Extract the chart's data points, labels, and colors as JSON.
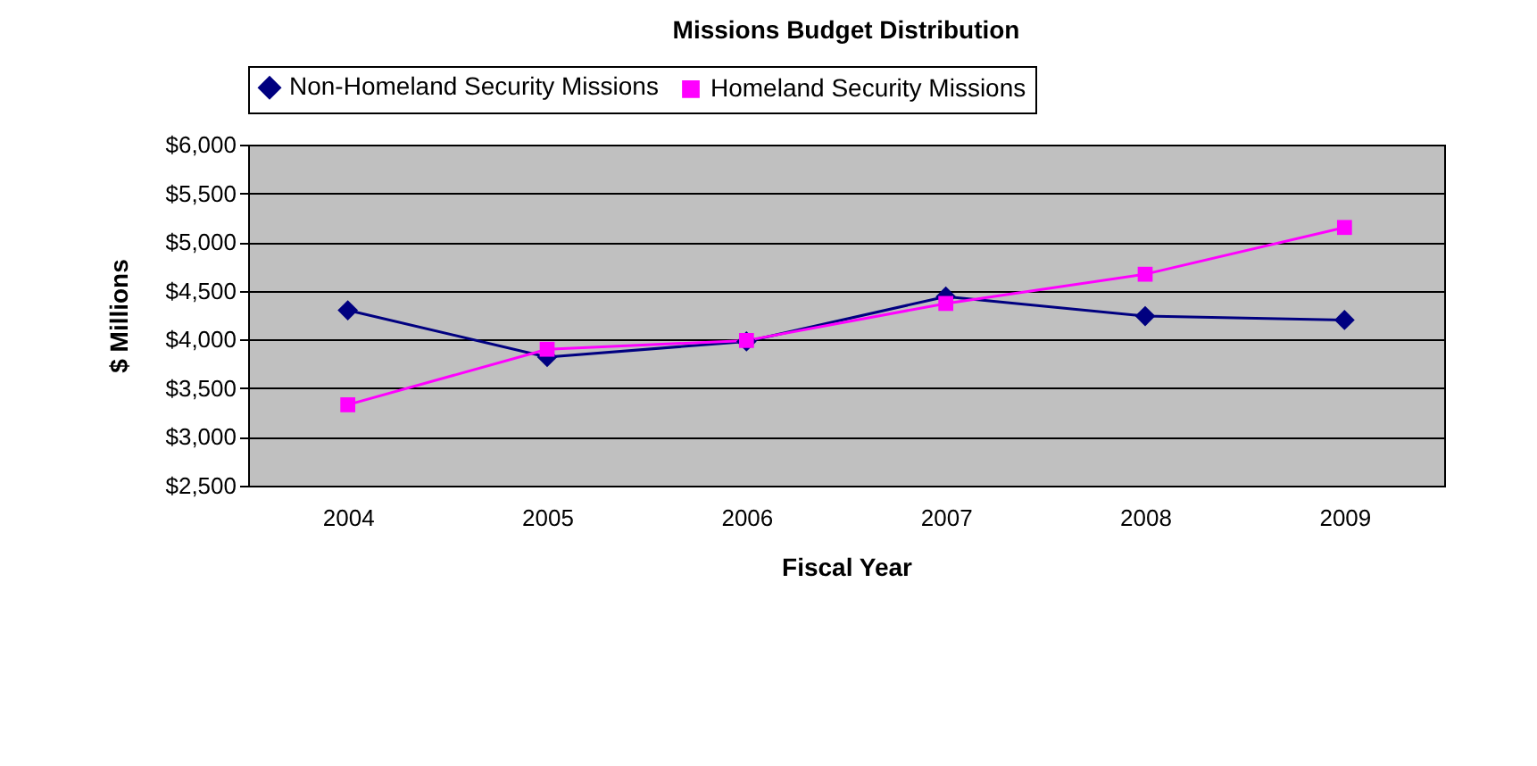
{
  "chart_data": {
    "type": "line",
    "title": "Missions Budget Distribution",
    "xlabel": "Fiscal Year",
    "ylabel": "$ Millions",
    "categories": [
      "2004",
      "2005",
      "2006",
      "2007",
      "2008",
      "2009"
    ],
    "series": [
      {
        "name": "Non-Homeland Security Missions",
        "color": "#000080",
        "marker": "diamond",
        "values": [
          4300,
          3820,
          3980,
          4440,
          4240,
          4200
        ]
      },
      {
        "name": "Homeland Security Missions",
        "color": "#ff00ff",
        "marker": "square",
        "values": [
          3330,
          3900,
          3990,
          4370,
          4670,
          5150
        ]
      }
    ],
    "ylim": [
      2500,
      6000
    ],
    "yticks": [
      {
        "value": 2500,
        "label": "$2,500"
      },
      {
        "value": 3000,
        "label": "$3,000"
      },
      {
        "value": 3500,
        "label": "$3,500"
      },
      {
        "value": 4000,
        "label": "$4,000"
      },
      {
        "value": 4500,
        "label": "$4,500"
      },
      {
        "value": 5000,
        "label": "$5,000"
      },
      {
        "value": 5500,
        "label": "$5,500"
      },
      {
        "value": 6000,
        "label": "$6,000"
      }
    ],
    "grid": "y",
    "legend": "top",
    "line_style": "solid"
  }
}
